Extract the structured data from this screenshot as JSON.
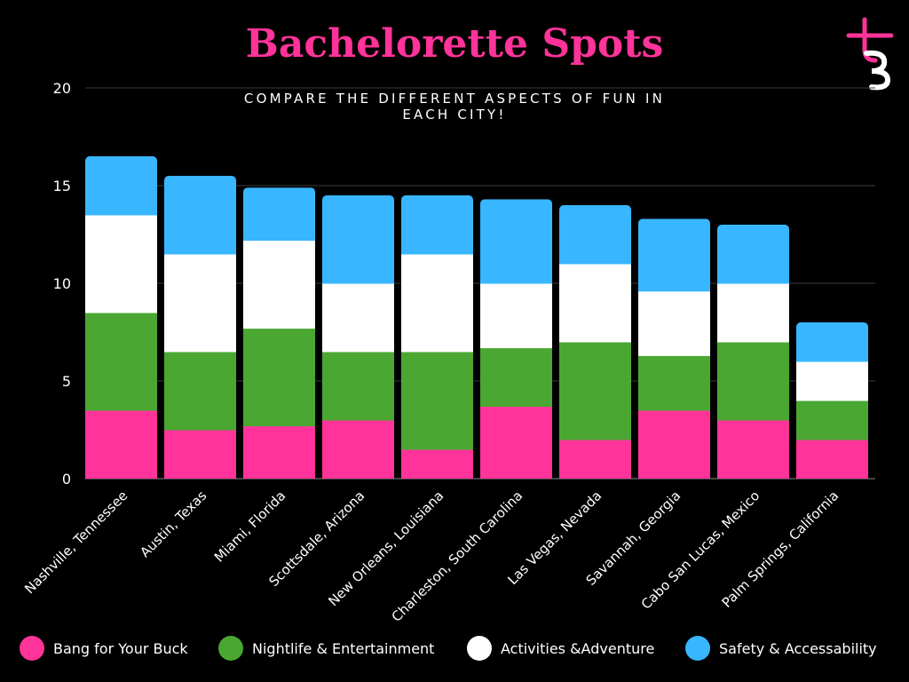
{
  "header": {
    "title": "Bachelorette Spots",
    "subtitle": "COMPARE THE DIFFERENT ASPECTS OF FUN IN EACH CITY!",
    "logo_icon": "tb-monogram-logo",
    "title_color": "#ff3399"
  },
  "chart_data": {
    "type": "bar",
    "stacked": true,
    "categories": [
      "Nashville, Tennessee",
      "Austin, Texas",
      "Miami, Florida",
      "Scottsdale, Arizona",
      "New Orleans, Louisiana",
      "Charleston, South Carolina",
      "Las Vegas, Nevada",
      "Savannah, Georgia",
      "Cabo San Lucas, Mexico",
      "Palm Springs, California"
    ],
    "series": [
      {
        "name": "Bang for Your Buck",
        "color": "#ff3399",
        "values": [
          3.5,
          2.5,
          2.7,
          3.0,
          1.5,
          3.7,
          2.0,
          3.5,
          3.0,
          2.0
        ]
      },
      {
        "name": "Nightlife & Entertainment",
        "color": "#4aa832",
        "values": [
          5.0,
          4.0,
          5.0,
          3.5,
          5.0,
          3.0,
          5.0,
          2.8,
          4.0,
          2.0
        ]
      },
      {
        "name": "Activities &Adventure",
        "color": "#ffffff",
        "values": [
          5.0,
          5.0,
          4.5,
          3.5,
          5.0,
          3.3,
          4.0,
          3.3,
          3.0,
          2.0
        ]
      },
      {
        "name": "Safety & Accessability",
        "color": "#38b6ff",
        "values": [
          3.0,
          4.0,
          2.7,
          4.5,
          3.0,
          4.3,
          3.0,
          3.7,
          3.0,
          2.0
        ]
      }
    ],
    "ylim": [
      0,
      20
    ],
    "yticks": [
      0,
      5,
      10,
      15,
      20
    ],
    "grid": true,
    "legend_position": "bottom",
    "xlabel": "",
    "ylabel": ""
  }
}
